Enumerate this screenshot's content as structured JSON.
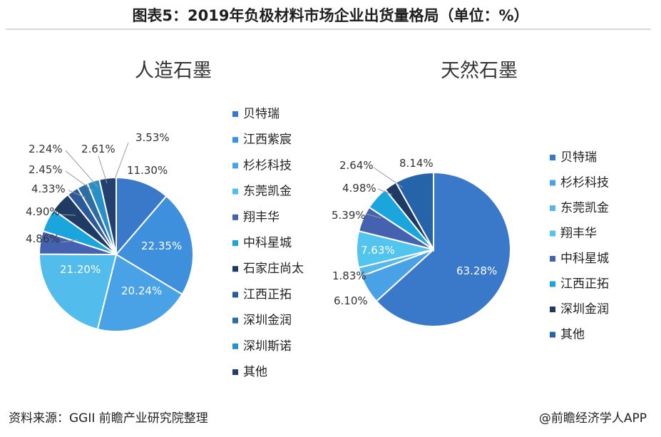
{
  "header": {
    "title": "图表5：2019年负极材料市场企业出货量格局（单位：%）"
  },
  "footer": {
    "source": "资料来源：GGII 前瞻产业研究院整理",
    "credit": "@前瞻经济学人APP"
  },
  "chart_data": [
    {
      "type": "pie",
      "title": "人造石墨",
      "categories": [
        "贝特瑞",
        "江西紫宸",
        "杉杉科技",
        "东莞凯金",
        "翔丰华",
        "中科星城",
        "石家庄尚太",
        "江西正拓",
        "深圳金润",
        "深圳斯诺",
        "其他"
      ],
      "values": [
        11.3,
        22.35,
        20.24,
        21.2,
        4.86,
        4.9,
        4.33,
        2.45,
        2.24,
        2.61,
        3.53
      ],
      "value_labels": [
        "11.30%",
        "22.35%",
        "20.24%",
        "21.20%",
        "4.86%",
        "4.90%",
        "4.33%",
        "2.45%",
        "2.24%",
        "2.61%",
        "3.53%"
      ],
      "colors": [
        "#3a78c9",
        "#3e8fdc",
        "#4aa2e6",
        "#52bdec",
        "#4562b0",
        "#1aa6dd",
        "#1f3b63",
        "#2a5a98",
        "#2e6da2",
        "#2790c6",
        "#24406e"
      ],
      "legend_position": "right"
    },
    {
      "type": "pie",
      "title": "天然石墨",
      "categories": [
        "贝特瑞",
        "杉杉科技",
        "东莞凯金",
        "翔丰华",
        "中科星城",
        "江西正拓",
        "深圳金润",
        "其他"
      ],
      "values": [
        63.28,
        6.1,
        1.83,
        7.63,
        5.39,
        4.98,
        2.64,
        8.14
      ],
      "value_labels": [
        "63.28%",
        "6.10%",
        "1.83%",
        "7.63%",
        "5.39%",
        "4.98%",
        "2.64%",
        "8.14%"
      ],
      "colors": [
        "#3a78c9",
        "#4aa2e6",
        "#59b8ea",
        "#52c5ee",
        "#4562b0",
        "#1aa6dd",
        "#1f3b63",
        "#2564a8"
      ],
      "legend_position": "right"
    }
  ]
}
